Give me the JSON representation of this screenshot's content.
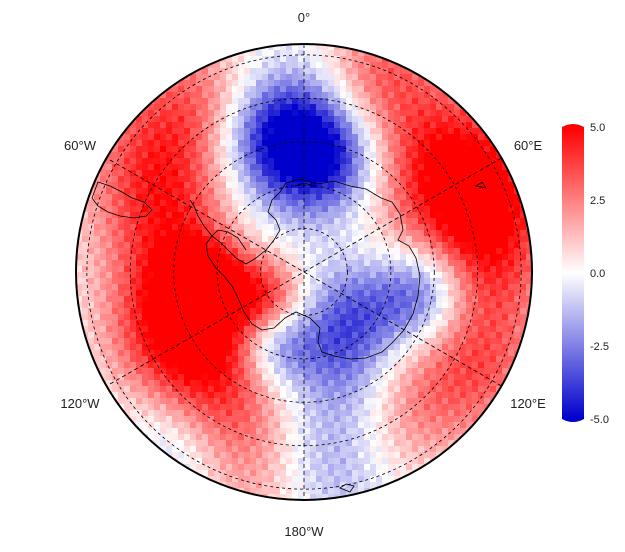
{
  "map": {
    "projection": "south-polar-stereographic",
    "coastlines": "Antarctica, Antarctic Peninsula, South Georgia, Macquarie Island",
    "graticule": {
      "latitude_rings": 5,
      "meridians_every_deg": 60,
      "style": "dashed"
    },
    "longitude_labels": [
      "0°",
      "60°E",
      "120°E",
      "180°W",
      "120°W",
      "60°W"
    ]
  },
  "colorbar": {
    "colormap": "blue-white-red",
    "min_color": "#0000cc",
    "mid_color": "#ffffff",
    "max_color": "#ff0000",
    "range": [
      -5.0,
      5.0
    ],
    "tick_labels": [
      "5.0",
      "2.5",
      "0.0",
      "-2.5",
      "-5.0"
    ]
  },
  "field_description": "Anomaly field: positive (red) over South Pacific/Amundsen–Bellingshausen sectors and eastern Indian Ocean; negative (blue) over Weddell Sea, East Antarctic coast and Ross Sea."
}
